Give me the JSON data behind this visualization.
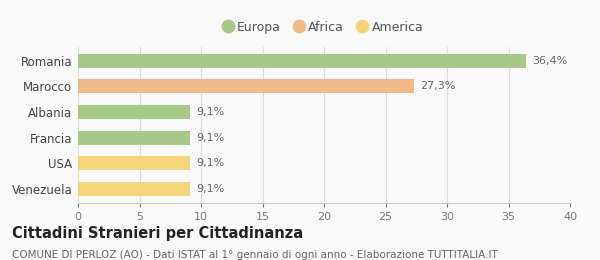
{
  "categories": [
    "Venezuela",
    "USA",
    "Francia",
    "Albania",
    "Marocco",
    "Romania"
  ],
  "values": [
    9.1,
    9.1,
    9.1,
    9.1,
    27.3,
    36.4
  ],
  "labels": [
    "9,1%",
    "9,1%",
    "9,1%",
    "9,1%",
    "27,3%",
    "36,4%"
  ],
  "colors": [
    "#f5d47a",
    "#f5d47a",
    "#a8c98a",
    "#a8c98a",
    "#f0ba8a",
    "#a8c98a"
  ],
  "legend_items": [
    {
      "label": "Europa",
      "color": "#a8c98a"
    },
    {
      "label": "Africa",
      "color": "#f0ba8a"
    },
    {
      "label": "America",
      "color": "#f5d47a"
    }
  ],
  "xlim": [
    0,
    40
  ],
  "xticks": [
    0,
    5,
    10,
    15,
    20,
    25,
    30,
    35,
    40
  ],
  "title": "Cittadini Stranieri per Cittadinanza",
  "subtitle": "COMUNE DI PERLOZ (AO) - Dati ISTAT al 1° gennaio di ogni anno - Elaborazione TUTTITALIA.IT",
  "background_color": "#f9f9f9",
  "bar_height": 0.55,
  "grid_color": "#dddddd",
  "title_fontsize": 10.5,
  "subtitle_fontsize": 7.5,
  "label_fontsize": 8,
  "tick_fontsize": 8,
  "ytick_fontsize": 8.5
}
